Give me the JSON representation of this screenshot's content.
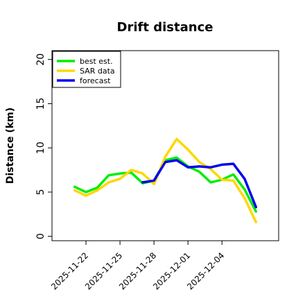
{
  "chart_data": {
    "type": "line",
    "title": "Drift distance",
    "xlabel": "",
    "ylabel": "Distance (km)",
    "xlim": [
      "2025-11-19",
      "2025-12-09"
    ],
    "ylim": [
      -0.5,
      21
    ],
    "yticks": [
      0,
      5,
      10,
      15,
      20
    ],
    "xticks": [
      "2025-11-22",
      "2025-11-25",
      "2025-11-28",
      "2025-12-01",
      "2025-12-04"
    ],
    "grid": false,
    "legend_position": "top-left",
    "x": [
      "2025-11-21",
      "2025-11-22",
      "2025-11-23",
      "2025-11-24",
      "2025-11-25",
      "2025-11-26",
      "2025-11-27",
      "2025-11-28",
      "2025-11-29",
      "2025-11-30",
      "2025-12-01",
      "2025-12-02",
      "2025-12-03",
      "2025-12-04",
      "2025-12-05",
      "2025-12-06",
      "2025-12-07",
      "2025-12-08"
    ],
    "series": [
      {
        "name": "best est.",
        "color": "#00ee00",
        "values": [
          5.6,
          5.0,
          5.5,
          6.9,
          7.1,
          7.2,
          6.0,
          6.3,
          8.6,
          8.9,
          7.9,
          7.3,
          6.1,
          6.4,
          7.0,
          5.3,
          2.8,
          null
        ]
      },
      {
        "name": "SAR data",
        "color": "#ffd700",
        "values": [
          5.2,
          4.6,
          5.2,
          6.1,
          6.5,
          7.5,
          7.1,
          5.9,
          9.0,
          11.0,
          9.8,
          8.4,
          7.6,
          6.4,
          6.3,
          4.3,
          1.6,
          null
        ]
      },
      {
        "name": "forecast",
        "color": "#0000ee",
        "values": [
          null,
          null,
          null,
          null,
          null,
          null,
          6.1,
          6.3,
          8.4,
          8.6,
          7.8,
          7.9,
          7.8,
          8.1,
          8.2,
          6.5,
          3.3,
          null
        ]
      }
    ]
  }
}
